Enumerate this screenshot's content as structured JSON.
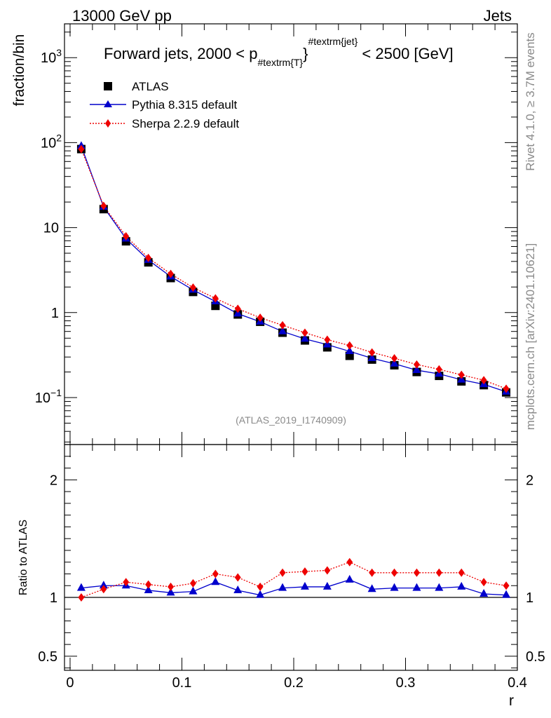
{
  "header": {
    "energy_label": "13000 GeV pp",
    "process_label": "Jets"
  },
  "side_labels": {
    "rivet": "Rivet 4.1.0, ≥ 3.7M events",
    "mcplots": "mcplots.cern.ch [arXiv:2401.10621]"
  },
  "watermark": "(ATLAS_2019_I1740909)",
  "colors": {
    "atlas": "#000000",
    "pythia": "#0000cc",
    "sherpa": "#ee0000"
  },
  "chart_data": [
    {
      "type": "scatter",
      "panel": "main",
      "title": "Forward jets, 2000 < p",
      "title_sub": "#textrm{T}",
      "title_sup": "#textrm{jet}",
      "title_tail": " < 2500 [GeV]",
      "ylabel": "fraction/bin",
      "yscale": "log",
      "ylim": [
        0.028,
        2500
      ],
      "xlim": [
        -0.005,
        0.4
      ],
      "y_ticks": [
        {
          "value": 1000,
          "label": "10",
          "sup": "3"
        },
        {
          "value": 100,
          "label": "10",
          "sup": "2"
        },
        {
          "value": 10,
          "label": "10",
          "sup": ""
        },
        {
          "value": 1,
          "label": "1",
          "sup": ""
        },
        {
          "value": 0.1,
          "label": "10",
          "sup": "−1"
        }
      ],
      "legend": [
        {
          "name": "ATLAS",
          "marker": "square"
        },
        {
          "name": "Pythia 8.315 default",
          "marker": "triangle"
        },
        {
          "name": "Sherpa 2.2.9 default",
          "marker": "diamond"
        }
      ],
      "x": [
        0.01,
        0.03,
        0.05,
        0.07,
        0.09,
        0.11,
        0.13,
        0.15,
        0.17,
        0.19,
        0.21,
        0.23,
        0.25,
        0.27,
        0.29,
        0.31,
        0.33,
        0.35,
        0.37,
        0.39
      ],
      "series": [
        {
          "name": "ATLAS",
          "values": [
            84,
            16.5,
            6.9,
            3.9,
            2.55,
            1.75,
            1.2,
            0.95,
            0.78,
            0.58,
            0.47,
            0.39,
            0.31,
            0.28,
            0.24,
            0.2,
            0.18,
            0.155,
            0.14,
            0.115
          ]
        },
        {
          "name": "Pythia 8.315 default",
          "values": [
            91,
            17.5,
            7.4,
            4.15,
            2.65,
            1.85,
            1.35,
            0.97,
            0.78,
            0.6,
            0.49,
            0.42,
            0.35,
            0.29,
            0.25,
            0.21,
            0.19,
            0.162,
            0.143,
            0.117
          ]
        },
        {
          "name": "Sherpa 2.2.9 default",
          "values": [
            84,
            18,
            7.9,
            4.4,
            2.85,
            1.97,
            1.47,
            1.11,
            0.87,
            0.71,
            0.58,
            0.48,
            0.41,
            0.34,
            0.29,
            0.245,
            0.215,
            0.185,
            0.16,
            0.127
          ]
        }
      ]
    },
    {
      "type": "scatter",
      "panel": "ratio",
      "ylabel": "Ratio to ATLAS",
      "xlabel": "r",
      "ylim": [
        0.38,
        2.3
      ],
      "xlim": [
        -0.005,
        0.4
      ],
      "y_ticks": [
        0.5,
        1,
        2
      ],
      "y_tick_labels": [
        "0.5",
        "1",
        "2"
      ],
      "x_ticks": [
        0,
        0.1,
        0.2,
        0.3,
        0.4
      ],
      "x_tick_labels": [
        "0",
        "0.1",
        "0.2",
        "0.3",
        "0.4"
      ],
      "reference_line": 1,
      "x": [
        0.01,
        0.03,
        0.05,
        0.07,
        0.09,
        0.11,
        0.13,
        0.15,
        0.17,
        0.19,
        0.21,
        0.23,
        0.25,
        0.27,
        0.29,
        0.31,
        0.33,
        0.35,
        0.37,
        0.39
      ],
      "series": [
        {
          "name": "Pythia 8.315 default",
          "values": [
            1.08,
            1.1,
            1.1,
            1.06,
            1.04,
            1.05,
            1.13,
            1.06,
            1.02,
            1.08,
            1.09,
            1.09,
            1.15,
            1.07,
            1.08,
            1.08,
            1.08,
            1.09,
            1.03,
            1.02
          ]
        },
        {
          "name": "Sherpa 2.2.9 default",
          "values": [
            1.0,
            1.07,
            1.13,
            1.11,
            1.09,
            1.12,
            1.2,
            1.17,
            1.09,
            1.21,
            1.22,
            1.23,
            1.3,
            1.21,
            1.21,
            1.21,
            1.21,
            1.21,
            1.13,
            1.1
          ]
        }
      ]
    }
  ]
}
